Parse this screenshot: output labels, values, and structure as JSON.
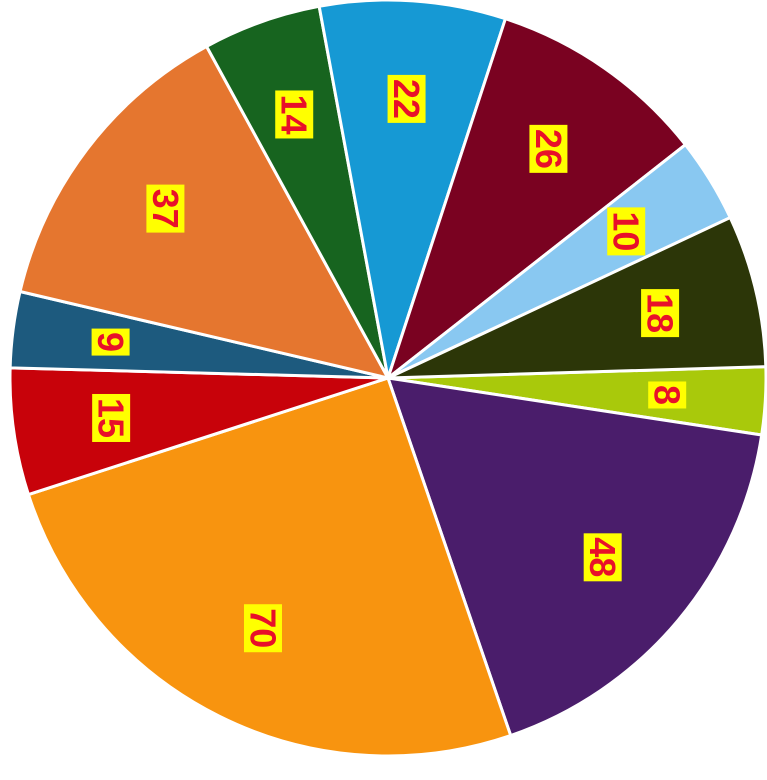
{
  "chart_data": {
    "type": "pie",
    "title": "",
    "start": "3 o'clock",
    "direction": "clockwise",
    "slices": [
      {
        "value": 8,
        "label": "8",
        "color": "#a9c90b"
      },
      {
        "value": 48,
        "label": "48",
        "color": "#4a1d6b"
      },
      {
        "value": 70,
        "label": "70",
        "color": "#f8940f"
      },
      {
        "value": 15,
        "label": "15",
        "color": "#c8020a"
      },
      {
        "value": 9,
        "label": "9",
        "color": "#1d5a7e"
      },
      {
        "value": 37,
        "label": "37",
        "color": "#e5762f"
      },
      {
        "value": 14,
        "label": "14",
        "color": "#17641f"
      },
      {
        "value": 22,
        "label": "22",
        "color": "#1699d4"
      },
      {
        "value": 26,
        "label": "26",
        "color": "#7a0221"
      },
      {
        "value": 10,
        "label": "10",
        "color": "#89c8f1"
      },
      {
        "value": 18,
        "label": "18",
        "color": "#2c3608"
      }
    ],
    "data_label_style": {
      "background": "#ffff00",
      "text_color": "#e8102a",
      "rotation": "vertical"
    }
  }
}
